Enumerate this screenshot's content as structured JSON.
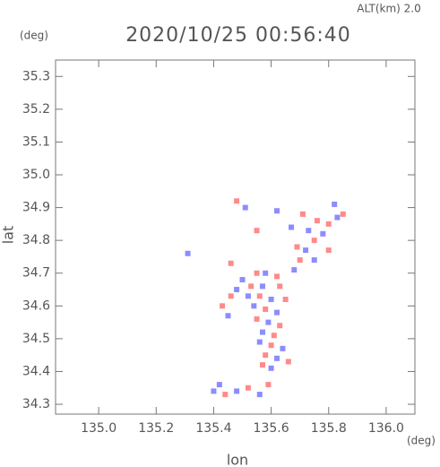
{
  "chart_data": {
    "type": "scatter",
    "title": "2020/10/25 00:56:40",
    "header_right": "ALT(km) 2.0",
    "ylabel_unit": "(deg)",
    "xlabel_unit": "(deg)",
    "xlabel": "lon",
    "ylabel": "lat",
    "xlim": [
      134.85,
      136.1
    ],
    "ylim": [
      34.27,
      35.35
    ],
    "xticks": [
      {
        "value": 135.0,
        "label": "135.0"
      },
      135.2,
      135.4,
      135.6,
      135.8,
      {
        "value": 136.0,
        "label": "136.0"
      }
    ],
    "yticks": [
      34.3,
      34.4,
      34.5,
      34.6,
      34.7,
      34.8,
      34.9,
      {
        "value": 35.0,
        "label": "35.0"
      },
      35.1,
      35.2,
      35.3
    ],
    "grid": false,
    "x": [
      135.55,
      135.58,
      135.62,
      135.5,
      135.53,
      135.57,
      135.63,
      135.48,
      135.46,
      135.52,
      135.56,
      135.6,
      135.65,
      135.54,
      135.58,
      135.62,
      135.55,
      135.59,
      135.63,
      135.57,
      135.61,
      135.56,
      135.6,
      135.64,
      135.58,
      135.62,
      135.57,
      135.6,
      135.43,
      135.45,
      135.66,
      135.68,
      135.7,
      135.72,
      135.75,
      135.78,
      135.8,
      135.83,
      135.85,
      135.82,
      135.76,
      135.73,
      135.69,
      135.67,
      135.71,
      135.62,
      135.48,
      135.51,
      135.55,
      135.31,
      135.46,
      135.4,
      135.44,
      135.48,
      135.52,
      135.56,
      135.59,
      135.42,
      135.75,
      135.8
    ],
    "values": [
      34.7,
      34.7,
      34.69,
      34.68,
      34.66,
      34.66,
      34.66,
      34.65,
      34.63,
      34.63,
      34.63,
      34.62,
      34.62,
      34.6,
      34.59,
      34.58,
      34.56,
      34.55,
      34.54,
      34.52,
      34.51,
      34.49,
      34.48,
      34.47,
      34.45,
      34.44,
      34.42,
      34.41,
      34.6,
      34.57,
      34.43,
      34.71,
      34.74,
      34.77,
      34.8,
      34.82,
      34.85,
      34.87,
      34.88,
      34.91,
      34.86,
      34.83,
      34.78,
      34.84,
      34.88,
      34.89,
      34.92,
      34.9,
      34.83,
      34.76,
      34.73,
      34.34,
      34.33,
      34.34,
      34.35,
      34.33,
      34.36,
      34.36,
      34.74,
      34.77
    ],
    "colors": [
      "#ff8a8a",
      "#8c8cff",
      "#ff8a8a",
      "#8c8cff",
      "#ff8a8a",
      "#8c8cff",
      "#ff8a8a",
      "#8c8cff",
      "#ff8a8a",
      "#8c8cff",
      "#ff8a8a",
      "#8c8cff",
      "#ff8a8a",
      "#8c8cff",
      "#ff8a8a",
      "#8c8cff",
      "#ff8a8a",
      "#8c8cff",
      "#ff8a8a",
      "#8c8cff",
      "#ff8a8a",
      "#8c8cff",
      "#ff8a8a",
      "#8c8cff",
      "#ff8a8a",
      "#8c8cff",
      "#ff8a8a",
      "#8c8cff",
      "#ff8a8a",
      "#8c8cff",
      "#ff8a8a",
      "#8c8cff",
      "#ff8a8a",
      "#8c8cff",
      "#ff8a8a",
      "#8c8cff",
      "#ff8a8a",
      "#8c8cff",
      "#ff8a8a",
      "#8c8cff",
      "#ff8a8a",
      "#8c8cff",
      "#ff8a8a",
      "#8c8cff",
      "#ff8a8a",
      "#8c8cff",
      "#ff8a8a",
      "#8c8cff",
      "#ff8a8a",
      "#8c8cff",
      "#ff8a8a",
      "#8c8cff",
      "#ff8a8a",
      "#8c8cff",
      "#ff8a8a",
      "#8c8cff",
      "#ff8a8a",
      "#8c8cff",
      "#8c8cff",
      "#ff8a8a"
    ]
  }
}
